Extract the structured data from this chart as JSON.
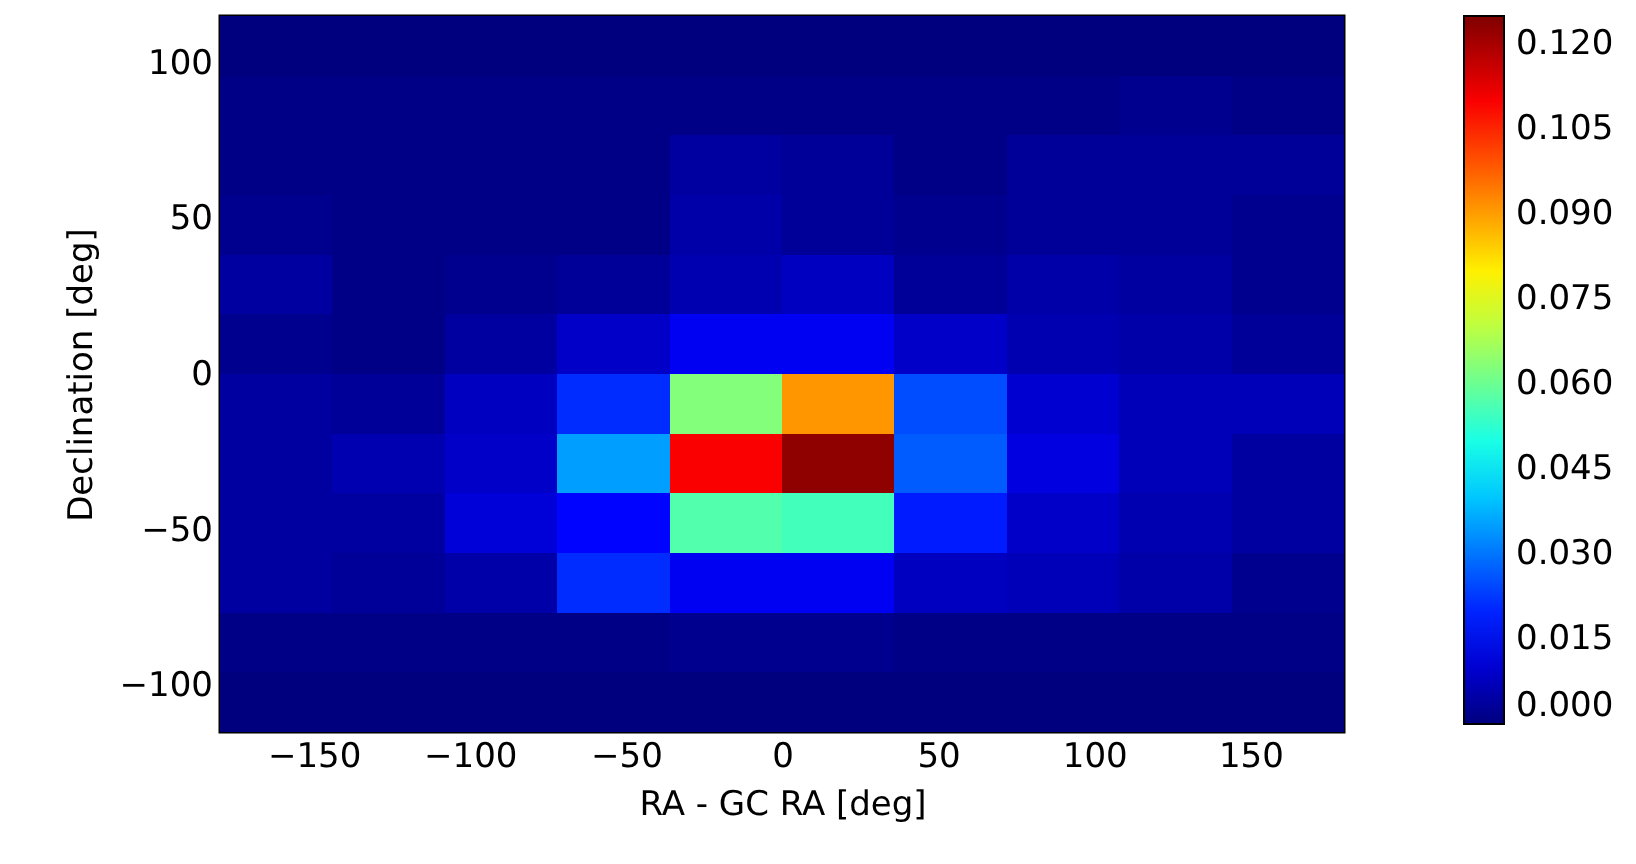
{
  "chart_data": {
    "type": "heatmap",
    "xlabel": "RA - GC RA [deg]",
    "ylabel": "Declination [deg]",
    "xlim": [
      -180,
      180
    ],
    "ylim": [
      -115,
      115
    ],
    "xticks": [
      -150,
      -100,
      -50,
      0,
      50,
      100,
      150
    ],
    "yticks": [
      -100,
      -50,
      0,
      50,
      100
    ],
    "clim": [
      0,
      0.125
    ],
    "cticks": [
      {
        "value": 0,
        "label": "0.000"
      },
      {
        "value": 0.015,
        "label": "0.015"
      },
      {
        "value": 0.03,
        "label": "0.030"
      },
      {
        "value": 0.045,
        "label": "0.045"
      },
      {
        "value": 0.06,
        "label": "0.060"
      },
      {
        "value": 0.075,
        "label": "0.075"
      },
      {
        "value": 0.09,
        "label": "0.090"
      },
      {
        "value": 0.105,
        "label": "0.105"
      },
      {
        "value": 0.12,
        "label": "0.120"
      }
    ],
    "cells": [
      [
        0,
        0,
        0,
        0,
        0,
        0,
        0,
        0,
        0,
        0
      ],
      [
        0.001,
        0.001,
        0.001,
        0.001,
        0.001,
        0.001,
        0.001,
        0.001,
        0.002,
        0.001
      ],
      [
        0.001,
        0.001,
        0.001,
        0.001,
        0.004,
        0.003,
        0.001,
        0.003,
        0.003,
        0.003
      ],
      [
        0.002,
        0.001,
        0.001,
        0.001,
        0.005,
        0.003,
        0.002,
        0.003,
        0.003,
        0.002
      ],
      [
        0.004,
        0.001,
        0.002,
        0.003,
        0.006,
        0.008,
        0.003,
        0.005,
        0.004,
        0.002
      ],
      [
        0.002,
        0.001,
        0.004,
        0.009,
        0.014,
        0.014,
        0.009,
        0.006,
        0.005,
        0.003
      ],
      [
        0.004,
        0.003,
        0.008,
        0.021,
        0.063,
        0.091,
        0.025,
        0.01,
        0.007,
        0.007
      ],
      [
        0.004,
        0.006,
        0.009,
        0.035,
        0.11,
        0.123,
        0.027,
        0.012,
        0.007,
        0.004
      ],
      [
        0.004,
        0.004,
        0.011,
        0.016,
        0.057,
        0.055,
        0.019,
        0.009,
        0.006,
        0.004
      ],
      [
        0.004,
        0.003,
        0.005,
        0.021,
        0.014,
        0.014,
        0.008,
        0.007,
        0.005,
        0.002
      ],
      [
        0.001,
        0.001,
        0.001,
        0.001,
        0.002,
        0.002,
        0.001,
        0.001,
        0.001,
        0.001
      ],
      [
        0,
        0,
        0,
        0,
        0,
        0,
        0,
        0,
        0,
        0
      ]
    ]
  }
}
